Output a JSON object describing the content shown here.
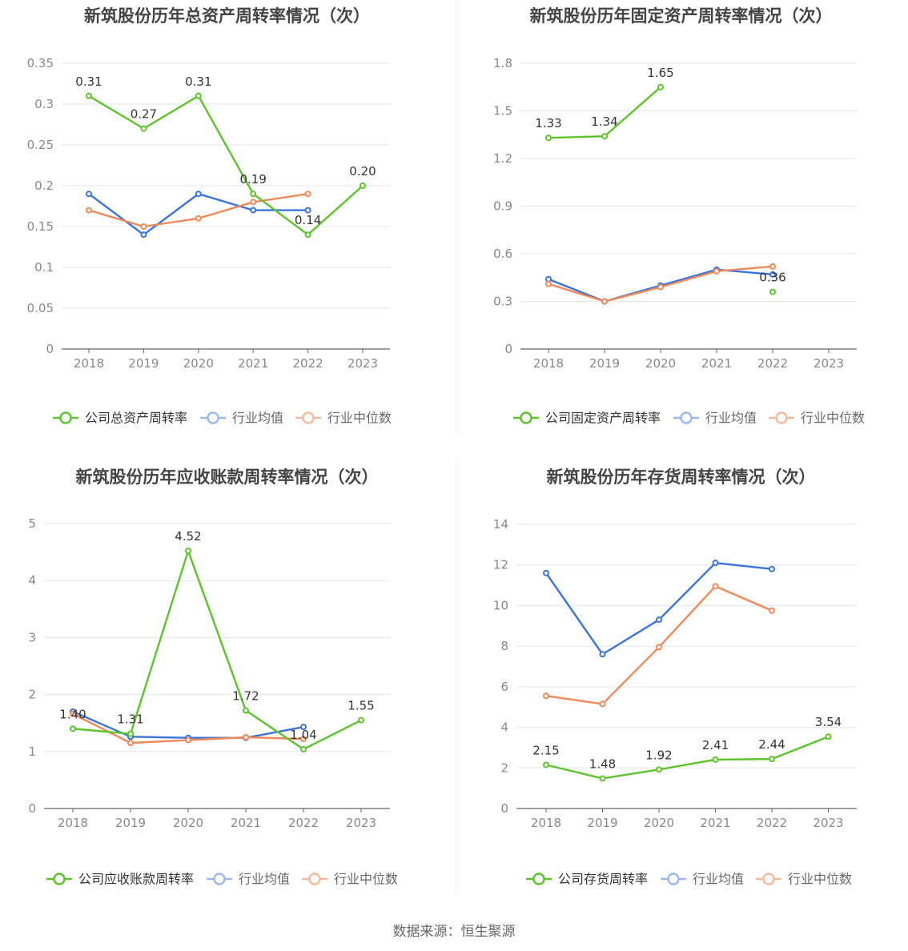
{
  "source": "数据来源：恒生聚源",
  "colors": {
    "company": "#5cc42a",
    "avg": "#3a73d9",
    "median": "#f0895a",
    "grid": "#e3e6ef",
    "axis": "#666666",
    "tick_text": "#888888",
    "label_text": "#333333"
  },
  "chart_data": [
    {
      "type": "line",
      "title": "新筑股份历年总资产周转率情况（次）",
      "categories": [
        "2018",
        "2019",
        "2020",
        "2021",
        "2022",
        "2023"
      ],
      "ylim": [
        0,
        0.35
      ],
      "yticks": [
        "0",
        "0.05",
        "0.1",
        "0.15",
        "0.2",
        "0.25",
        "0.3",
        "0.35"
      ],
      "grid": true,
      "legend_position": "bottom",
      "series": [
        {
          "name": "公司总资产周转率",
          "values": [
            0.31,
            0.27,
            0.31,
            0.19,
            0.14,
            0.2
          ],
          "labels": [
            "0.31",
            "0.27",
            "0.31",
            "0.19",
            "0.14",
            "0.20"
          ]
        },
        {
          "name": "行业均值",
          "values": [
            0.19,
            0.14,
            0.19,
            0.17,
            0.17,
            null
          ]
        },
        {
          "name": "行业中位数",
          "values": [
            0.17,
            0.15,
            0.16,
            0.18,
            0.19,
            null
          ]
        }
      ]
    },
    {
      "type": "line",
      "title": "新筑股份历年固定资产周转率情况（次）",
      "categories": [
        "2018",
        "2019",
        "2020",
        "2021",
        "2022",
        "2023"
      ],
      "ylim": [
        0,
        1.8
      ],
      "yticks": [
        "0",
        "0.3",
        "0.6",
        "0.9",
        "1.2",
        "1.5",
        "1.8"
      ],
      "grid": true,
      "legend_position": "bottom",
      "series": [
        {
          "name": "公司固定资产周转率",
          "values": [
            1.33,
            1.34,
            1.65,
            null,
            0.36,
            null
          ],
          "labels": [
            "1.33",
            "1.34",
            "1.65",
            null,
            "0.36",
            null
          ]
        },
        {
          "name": "行业均值",
          "values": [
            0.44,
            0.3,
            0.4,
            0.5,
            0.47,
            null
          ]
        },
        {
          "name": "行业中位数",
          "values": [
            0.41,
            0.3,
            0.39,
            0.49,
            0.52,
            null
          ]
        }
      ]
    },
    {
      "type": "line",
      "title": "新筑股份历年应收账款周转率情况（次）",
      "categories": [
        "2018",
        "2019",
        "2020",
        "2021",
        "2022",
        "2023"
      ],
      "ylim": [
        0,
        5
      ],
      "yticks": [
        "0",
        "1",
        "2",
        "3",
        "4",
        "5"
      ],
      "grid": true,
      "legend_position": "bottom",
      "series": [
        {
          "name": "公司应收账款周转率",
          "values": [
            1.4,
            1.31,
            4.52,
            1.72,
            1.04,
            1.55
          ],
          "labels": [
            "1.40",
            "1.31",
            "4.52",
            "1.72",
            "1.04",
            "1.55"
          ]
        },
        {
          "name": "行业均值",
          "values": [
            1.7,
            1.26,
            1.24,
            1.24,
            1.43,
            null
          ]
        },
        {
          "name": "行业中位数",
          "values": [
            1.66,
            1.15,
            1.2,
            1.25,
            1.22,
            null
          ]
        }
      ]
    },
    {
      "type": "line",
      "title": "新筑股份历年存货周转率情况（次）",
      "categories": [
        "2018",
        "2019",
        "2020",
        "2021",
        "2022",
        "2023"
      ],
      "ylim": [
        0,
        14
      ],
      "yticks": [
        "0",
        "2",
        "4",
        "6",
        "8",
        "10",
        "12",
        "14"
      ],
      "grid": true,
      "legend_position": "bottom",
      "series": [
        {
          "name": "公司存货周转率",
          "values": [
            2.15,
            1.48,
            1.92,
            2.41,
            2.44,
            3.54
          ],
          "labels": [
            "2.15",
            "1.48",
            "1.92",
            "2.41",
            "2.44",
            "3.54"
          ]
        },
        {
          "name": "行业均值",
          "values": [
            11.6,
            7.6,
            9.3,
            12.1,
            11.8,
            null
          ]
        },
        {
          "name": "行业中位数",
          "values": [
            5.55,
            5.15,
            7.95,
            10.95,
            9.75,
            null
          ]
        }
      ]
    }
  ]
}
